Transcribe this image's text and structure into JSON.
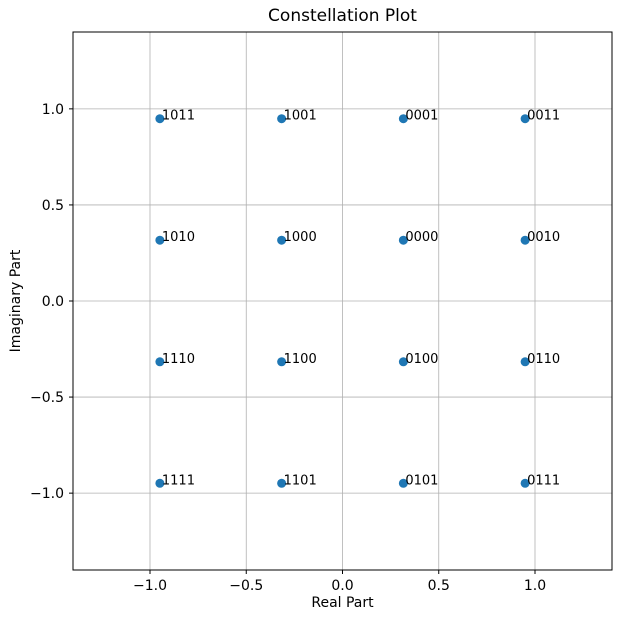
{
  "figure": {
    "title": "Constellation Plot",
    "xlabel": "Real Part",
    "ylabel": "Imaginary Part"
  },
  "chart_data": {
    "type": "scatter",
    "title": "Constellation Plot",
    "xlabel": "Real Part",
    "ylabel": "Imaginary Part",
    "xlim": [
      -1.4,
      1.4
    ],
    "ylim": [
      -1.4,
      1.4
    ],
    "xticks": [
      -1.0,
      -0.5,
      0.0,
      0.5,
      1.0
    ],
    "xtick_labels": [
      "−1.0",
      "−0.5",
      "0.0",
      "0.5",
      "1.0"
    ],
    "yticks": [
      -1.0,
      -0.5,
      0.0,
      0.5,
      1.0
    ],
    "ytick_labels": [
      "−1.0",
      "−0.5",
      "0.0",
      "0.5",
      "1.0"
    ],
    "grid": true,
    "legend_position": "none",
    "marker_color": "#1f77b4",
    "marker_radius_px": 4.5,
    "grid_color": "#b0b0b0",
    "spine_color": "#000000",
    "points": [
      {
        "x": -0.9487,
        "y": 0.9487,
        "label": "1011"
      },
      {
        "x": -0.3162,
        "y": 0.9487,
        "label": "1001"
      },
      {
        "x": 0.3162,
        "y": 0.9487,
        "label": "0001"
      },
      {
        "x": 0.9487,
        "y": 0.9487,
        "label": "0011"
      },
      {
        "x": -0.9487,
        "y": 0.3162,
        "label": "1010"
      },
      {
        "x": -0.3162,
        "y": 0.3162,
        "label": "1000"
      },
      {
        "x": 0.3162,
        "y": 0.3162,
        "label": "0000"
      },
      {
        "x": 0.9487,
        "y": 0.3162,
        "label": "0010"
      },
      {
        "x": -0.9487,
        "y": -0.3162,
        "label": "1110"
      },
      {
        "x": -0.3162,
        "y": -0.3162,
        "label": "1100"
      },
      {
        "x": 0.3162,
        "y": -0.3162,
        "label": "0100"
      },
      {
        "x": 0.9487,
        "y": -0.3162,
        "label": "0110"
      },
      {
        "x": -0.9487,
        "y": -0.9487,
        "label": "1111"
      },
      {
        "x": -0.3162,
        "y": -0.9487,
        "label": "1101"
      },
      {
        "x": 0.3162,
        "y": -0.9487,
        "label": "0101"
      },
      {
        "x": 0.9487,
        "y": -0.9487,
        "label": "0111"
      }
    ]
  }
}
